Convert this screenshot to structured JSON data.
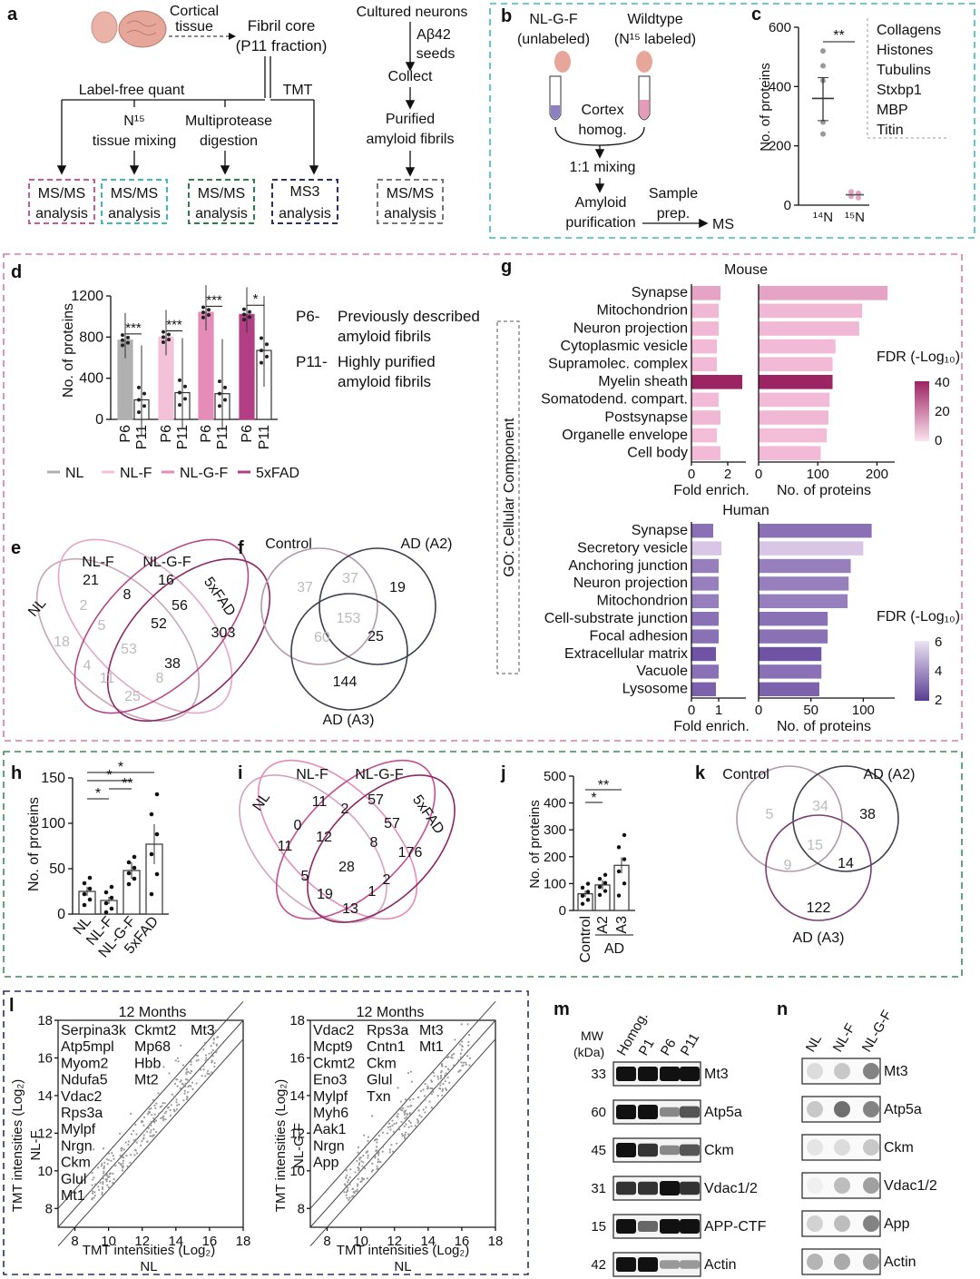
{
  "panels": {
    "a": {
      "label": "a",
      "cortical_tissue": [
        "Cortical",
        "tissue"
      ],
      "fibril_core": [
        "Fibril core",
        "(P11 fraction)"
      ],
      "label_free": "Label-free quant",
      "tmt": "TMT",
      "n15_mixing": [
        "N¹⁵",
        "tissue mixing"
      ],
      "multiprotease": [
        "Multiprotease",
        "digestion"
      ],
      "cultured": "Cultured neurons",
      "ab42": [
        "Aβ42",
        "seeds"
      ],
      "collect": "Collect",
      "purified": [
        "Purified",
        "amyloid fibrils"
      ],
      "boxes": [
        {
          "lines": [
            "MS/MS",
            "analysis"
          ],
          "color": "#c45a9c"
        },
        {
          "lines": [
            "MS/MS",
            "analysis"
          ],
          "color": "#3fb8b8"
        },
        {
          "lines": [
            "MS/MS",
            "analysis"
          ],
          "color": "#2e7d4f"
        },
        {
          "lines": [
            "MS3",
            "analysis"
          ],
          "color": "#2a2f6b"
        },
        {
          "lines": [
            "MS/MS",
            "analysis"
          ],
          "color": "#777777"
        }
      ]
    },
    "b": {
      "label": "b",
      "left": [
        "NL-G-F",
        "(unlabeled)"
      ],
      "right": [
        "Wildtype",
        "(N¹⁵ labeled)"
      ],
      "homog": [
        "Cortex",
        "homog."
      ],
      "mixing": "1:1 mixing",
      "amyloid": [
        "Amyloid",
        "purification"
      ],
      "sample": [
        "Sample",
        "prep."
      ],
      "ms": "MS"
    },
    "c": {
      "label": "c",
      "ylabel": "No. of proteins",
      "yticks": [
        "0",
        "200",
        "400",
        "600"
      ],
      "xticks": [
        "¹⁴N",
        "¹⁵N"
      ],
      "sig": "**",
      "legend": [
        "Collagens",
        "Histones",
        "Tubulins",
        "Stxbp1",
        "MBP",
        "Titin"
      ],
      "chart_data": {
        "type": "scatter",
        "categories": [
          "14N",
          "15N"
        ],
        "means": [
          360,
          35
        ],
        "ylim": [
          0,
          600
        ]
      }
    },
    "d": {
      "label": "d",
      "ylabel": "No. of proteins",
      "yticks": [
        "0",
        "400",
        "800",
        "1200"
      ],
      "xticks": [
        "P6",
        "P11",
        "P6",
        "P11",
        "P6",
        "P11",
        "P6",
        "P11"
      ],
      "sig": [
        "***",
        "***",
        "***",
        "*"
      ],
      "note_p6": [
        "P6-",
        "Previously described",
        "amyloid fibrils"
      ],
      "note_p11": [
        "P11-",
        "Highly purified",
        "amyloid fibrils"
      ],
      "legend": [
        {
          "name": "NL",
          "color": "#b0b0b0"
        },
        {
          "name": "NL-F",
          "color": "#f3c1d8"
        },
        {
          "name": "NL-G-F",
          "color": "#e58cb8"
        },
        {
          "name": "5xFAD",
          "color": "#b23f85"
        }
      ],
      "chart_data": {
        "type": "bar",
        "categories": [
          "NL P6",
          "NL P11",
          "NL-F P6",
          "NL-F P11",
          "NL-G-F P6",
          "NL-G-F P11",
          "5xFAD P6",
          "5xFAD P11"
        ],
        "values": [
          770,
          190,
          800,
          260,
          1040,
          250,
          1020,
          670
        ],
        "ylim": [
          0,
          1200
        ]
      }
    },
    "e": {
      "label": "e",
      "sets": [
        "NL",
        "NL-F",
        "NL-G-F",
        "5xFAD"
      ],
      "numbers": [
        "21",
        "16",
        "8",
        "56",
        "303",
        "2",
        "5",
        "52",
        "18",
        "53",
        "38",
        "4",
        "11",
        "8",
        "25"
      ]
    },
    "f": {
      "label": "f",
      "sets": [
        "Control",
        "AD (A2)",
        "AD (A3)"
      ],
      "numbers": [
        "37",
        "37",
        "19",
        "153",
        "60",
        "25",
        "144"
      ]
    },
    "g": {
      "label": "g",
      "side": "GO: Cellular Component",
      "mouse_title": "Mouse",
      "human_title": "Human",
      "fold_label": "Fold enrich.",
      "count_label": "No. of proteins",
      "fdr_label": "FDR (-Log₁₀)",
      "mouse_fold_ticks": [
        "0",
        "2"
      ],
      "mouse_count_ticks": [
        "0",
        "100",
        "200"
      ],
      "mouse_fdr_ticks": [
        "40",
        "20",
        "0"
      ],
      "human_fold_ticks": [
        "0",
        "1"
      ],
      "human_count_ticks": [
        "0",
        "50",
        "100"
      ],
      "human_fdr_ticks": [
        "6",
        "4",
        "2"
      ],
      "mouse": {
        "terms": [
          "Synapse",
          "Mitochondrion",
          "Neuron projection",
          "Cytoplasmic vesicle",
          "Supramolec. complex",
          "Myelin sheath",
          "Somatodend. compart.",
          "Postsynapse",
          "Organelle envelope",
          "Cell body"
        ],
        "fold": [
          1.6,
          1.5,
          1.5,
          1.4,
          1.4,
          2.8,
          1.5,
          1.6,
          1.4,
          1.6
        ],
        "count": [
          218,
          175,
          170,
          130,
          125,
          125,
          120,
          118,
          115,
          105
        ],
        "fdr": [
          8,
          5,
          5,
          4,
          4,
          40,
          4,
          5,
          3,
          4
        ]
      },
      "human": {
        "terms": [
          "Synapse",
          "Secretory vesicle",
          "Anchoring junction",
          "Neuron projection",
          "Mitochondrion",
          "Cell-substrate junction",
          "Focal adhesion",
          "Extracellular matrix",
          "Vacuole",
          "Lysosome"
        ],
        "fold": [
          0.8,
          1.1,
          1.0,
          1.0,
          1.0,
          1.0,
          1.0,
          0.9,
          1.0,
          0.9
        ],
        "count": [
          108,
          100,
          88,
          86,
          85,
          66,
          66,
          60,
          60,
          58
        ],
        "fdr": [
          4.5,
          1.5,
          4,
          4,
          4,
          4.5,
          4.5,
          5.5,
          4.5,
          5
        ]
      }
    },
    "h": {
      "label": "h",
      "ylabel": "No. of proteins",
      "yticks": [
        "0",
        "50",
        "100",
        "150"
      ],
      "xticks": [
        "NL",
        "NL-F",
        "NL-G-F",
        "5xFAD"
      ],
      "sig": [
        "*",
        "*",
        "**",
        "*"
      ],
      "chart_data": {
        "type": "bar",
        "categories": [
          "NL",
          "NL-F",
          "NL-G-F",
          "5xFAD"
        ],
        "values": [
          25,
          15,
          48,
          77
        ],
        "ylim": [
          0,
          150
        ]
      }
    },
    "i": {
      "label": "i",
      "sets": [
        "NL",
        "NL-F",
        "NL-G-F",
        "5xFAD"
      ],
      "numbers": [
        "11",
        "2",
        "57",
        "0",
        "57",
        "11",
        "12",
        "8",
        "176",
        "28",
        "5",
        "2",
        "19",
        "1",
        "13"
      ]
    },
    "j": {
      "label": "j",
      "ylabel": "No. of proteins",
      "yticks": [
        "0",
        "100",
        "200",
        "300",
        "400",
        "500"
      ],
      "xticks": [
        "Control",
        "A2",
        "A3"
      ],
      "group": "AD",
      "sig": [
        "*",
        "**"
      ],
      "chart_data": {
        "type": "bar",
        "categories": [
          "Control",
          "A2",
          "A3"
        ],
        "values": [
          62,
          95,
          168
        ],
        "ylim": [
          0,
          500
        ]
      }
    },
    "k": {
      "label": "k",
      "sets": [
        "Control",
        "AD (A2)",
        "AD (A3)"
      ],
      "numbers": [
        "5",
        "34",
        "38",
        "15",
        "9",
        "14",
        "122"
      ]
    },
    "l": {
      "label": "l",
      "title": "12 Months",
      "ylabel_left": [
        "TMT intensities (Log₂)",
        "NL-F"
      ],
      "ylabel_right": [
        "TMT intensities (Log₂)",
        "NL-G-F"
      ],
      "xlabel": [
        "TMT intensities (Log₂)",
        "NL"
      ],
      "ticks_y": [
        "8",
        "10",
        "12",
        "14",
        "16",
        "18"
      ],
      "ticks_x": [
        "8",
        "10",
        "12",
        "14",
        "16",
        "18"
      ],
      "left_genes_col1": [
        "Serpina3k",
        "Atp5mpl",
        "Myom2",
        "Ndufa5",
        "Vdac2",
        "Rps3a",
        "Mylpf",
        "Nrgn",
        "Ckm",
        "Glul",
        "Mt1"
      ],
      "left_genes_col2": [
        "Ckmt2",
        "Mp68",
        "Hbb",
        "Mt2"
      ],
      "left_genes_col3": [
        "Mt3"
      ],
      "right_genes_col1": [
        "Vdac2",
        "Mcpt9",
        "Ckmt2",
        "Eno3",
        "Mylpf",
        "Myh6",
        "Aak1",
        "Nrgn",
        "App"
      ],
      "right_genes_col2": [
        "Rps3a",
        "Cntn1",
        "Ckm",
        "Glul",
        "Txn"
      ],
      "right_genes_col3": [
        "Mt3",
        "Mt1"
      ]
    },
    "m": {
      "label": "m",
      "mw": [
        "MW",
        "(kDa)"
      ],
      "lanes": [
        "Homog.",
        "P1",
        "P6",
        "P11"
      ],
      "rows": [
        {
          "kda": "33",
          "name": "Mt3",
          "bands": [
            1,
            1,
            1,
            1
          ]
        },
        {
          "kda": "60",
          "name": "Atp5a",
          "bands": [
            1,
            1,
            0.3,
            0.6
          ]
        },
        {
          "kda": "45",
          "name": "Ckm",
          "bands": [
            1,
            0.8,
            0.3,
            0.6
          ]
        },
        {
          "kda": "31",
          "name": "Vdac1/2",
          "bands": [
            0.8,
            0.8,
            1,
            0.8
          ]
        },
        {
          "kda": "15",
          "name": "APP-CTF",
          "bands": [
            1,
            0.5,
            1,
            1
          ]
        },
        {
          "kda": "42",
          "name": "Actin",
          "bands": [
            1,
            1,
            0.2,
            0.2
          ]
        }
      ]
    },
    "n": {
      "label": "n",
      "lanes": [
        "NL",
        "NL-F",
        "NL-G-F"
      ],
      "rows": [
        "Mt3",
        "Atp5a",
        "Ckm",
        "Vdac1/2",
        "App",
        "Actin"
      ]
    }
  }
}
